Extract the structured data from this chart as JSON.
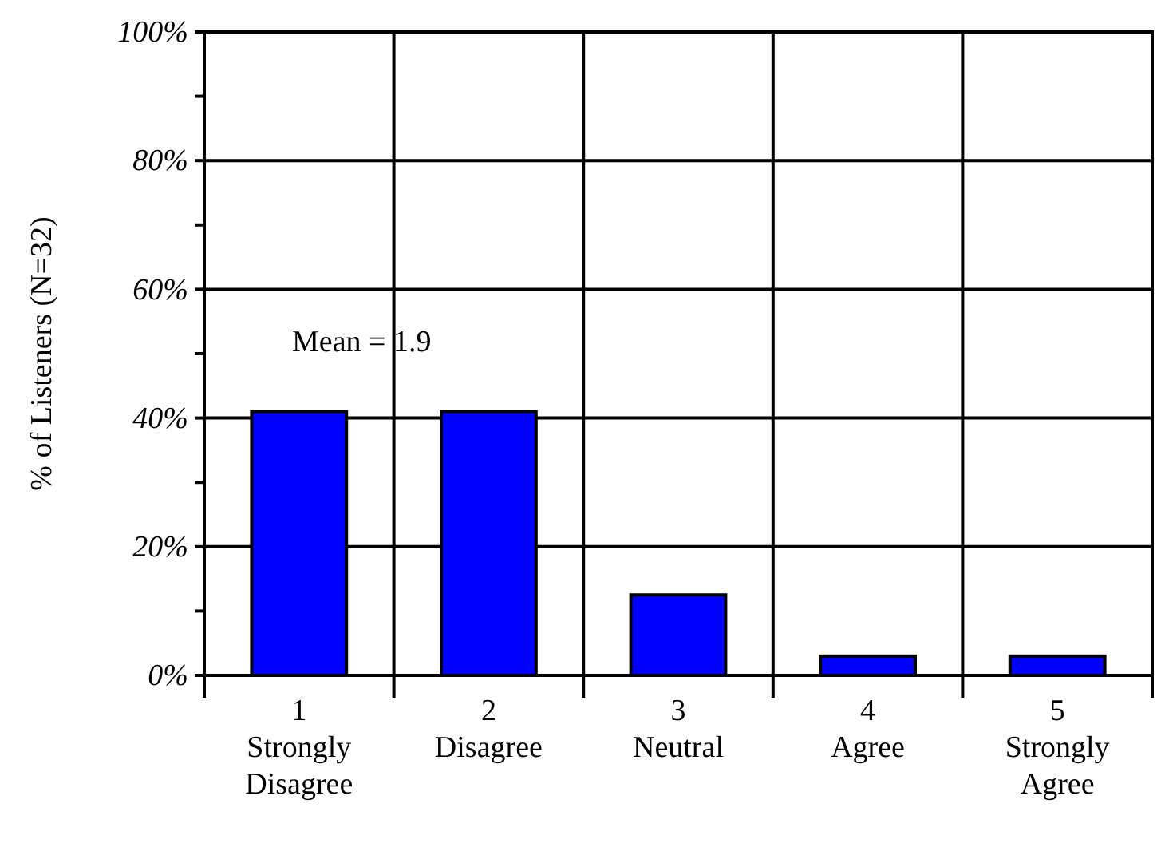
{
  "chart_data": {
    "type": "bar",
    "ylabel": "% of Listeners (N=32)",
    "categories": [
      "1\nStrongly\nDisagree",
      "2\nDisagree",
      "3\nNeutral",
      "4\nAgree",
      "5\nStrongly\nAgree"
    ],
    "values": [
      41,
      41,
      12.5,
      3,
      3
    ],
    "color": "#0000ff",
    "ylim": [
      0,
      100
    ],
    "yticks": [
      {
        "value": 0,
        "label": "0%"
      },
      {
        "value": 10,
        "label": null
      },
      {
        "value": 20,
        "label": "20%"
      },
      {
        "value": 30,
        "label": null
      },
      {
        "value": 40,
        "label": "40%"
      },
      {
        "value": 50,
        "label": null
      },
      {
        "value": 60,
        "label": "60%"
      },
      {
        "value": 70,
        "label": null
      },
      {
        "value": 80,
        "label": "80%"
      },
      {
        "value": 90,
        "label": null
      },
      {
        "value": 100,
        "label": "100%"
      }
    ],
    "grid": true,
    "annotations": [
      "Mean = 1.9"
    ]
  }
}
